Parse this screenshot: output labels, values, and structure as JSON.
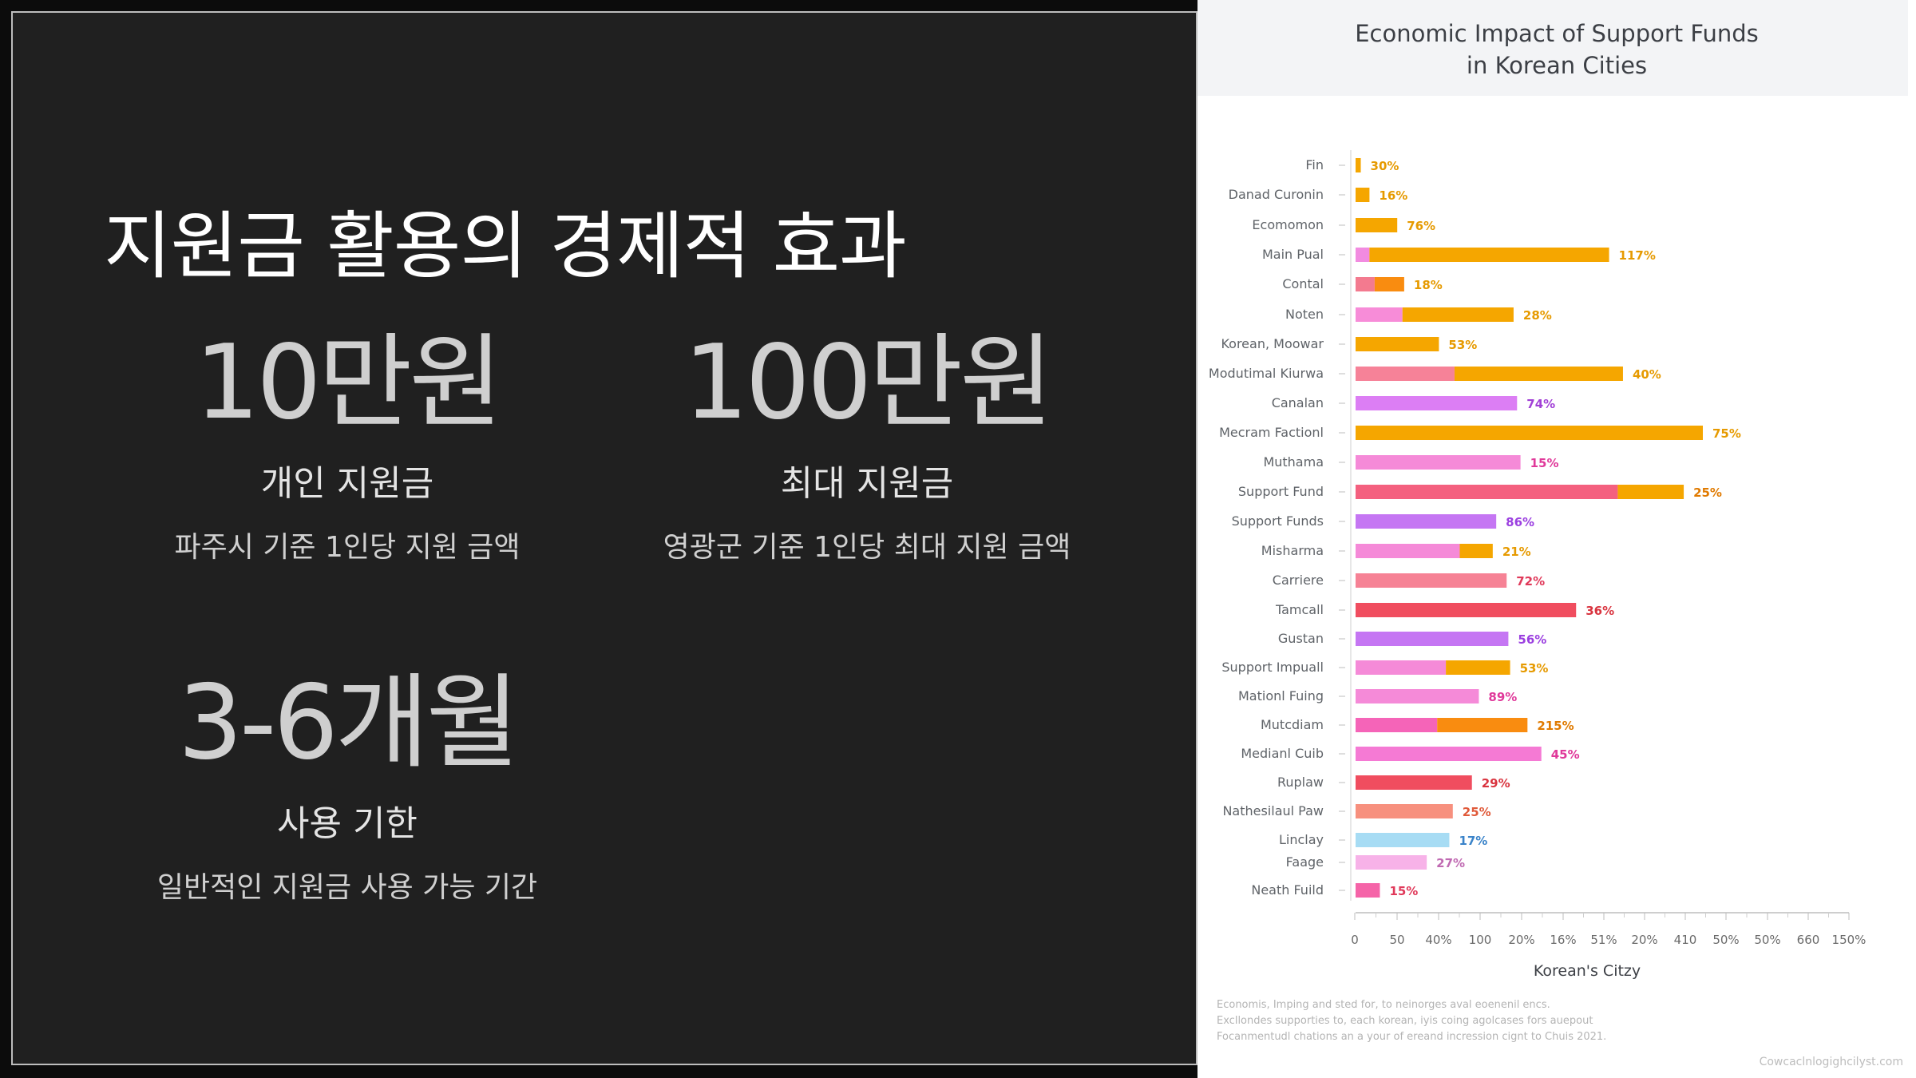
{
  "slide": {
    "title": "지원금 활용의 경제적 효과",
    "stats": [
      {
        "value": "10만원",
        "label": "개인 지원금",
        "desc": "파주시 기준 1인당 지원 금액"
      },
      {
        "value": "100만원",
        "label": "최대 지원금",
        "desc": "영광군 기준 1인당 최대 지원 금액"
      },
      {
        "value": "3-6개월",
        "label": "사용 기한",
        "desc": "일반적인 지원금 사용 가능 기간"
      }
    ]
  },
  "chart_data": {
    "type": "bar",
    "title_line1": "Economic Impact of Support Funds",
    "title_line2": "in Korean Cities",
    "xlabel": "Korean's Citzy",
    "xticks": [
      "0",
      "50",
      "40%",
      "100",
      "20%",
      "16%",
      "51%",
      "20%",
      "410",
      "50%",
      "50%",
      "660",
      "150%"
    ],
    "categories": [
      "Fin",
      "Danad Curonin",
      "Ecomomon",
      "Main Pual",
      "Contal",
      "Noten",
      "Korean, Moowar",
      "Modutimal Kiurwa",
      "Canalan",
      "Mecram Factionl",
      "Muthama",
      "Support Fund",
      "Support Funds",
      "Misharma",
      "Carriere",
      "Tamcall",
      "Gustan",
      "Support Impuall",
      "Mationl Fuing",
      "Mutcdiam",
      "Medianl Cuib",
      "Ruplaw",
      "Nathesilaul Paw",
      "Linclay",
      "Faage",
      "Neath Fuild"
    ],
    "labels": [
      "30%",
      "16%",
      "76%",
      "117%",
      "18%",
      "28%",
      "53%",
      "40%",
      "74%",
      "75%",
      "15%",
      "25%",
      "86%",
      "21%",
      "72%",
      "36%",
      "56%",
      "53%",
      "89%",
      "215%",
      "45%",
      "29%",
      "25%",
      "17%",
      "27%",
      "15%"
    ],
    "bars": [
      {
        "segments": [
          {
            "len": 3,
            "color": "#f5a600"
          }
        ],
        "label_color": "#e69a00"
      },
      {
        "segments": [
          {
            "len": 8,
            "color": "#f5a600"
          }
        ],
        "label_color": "#e69a00"
      },
      {
        "segments": [
          {
            "len": 24,
            "color": "#f5a600"
          }
        ],
        "label_color": "#e69a00"
      },
      {
        "segments": [
          {
            "len": 8,
            "color": "#f28be0"
          },
          {
            "len": 138,
            "color": "#f5a600"
          }
        ],
        "label_color": "#e69a00"
      },
      {
        "segments": [
          {
            "len": 11,
            "color": "#f37a8f"
          },
          {
            "len": 17,
            "color": "#f98c10"
          }
        ],
        "label_color": "#e69a00"
      },
      {
        "segments": [
          {
            "len": 27,
            "color": "#f78cd8"
          },
          {
            "len": 64,
            "color": "#f5a600"
          }
        ],
        "label_color": "#e69a00"
      },
      {
        "segments": [
          {
            "len": 48,
            "color": "#f5a600"
          }
        ],
        "label_color": "#e69a00"
      },
      {
        "segments": [
          {
            "len": 57,
            "color": "#f68298"
          },
          {
            "len": 97,
            "color": "#f5a600"
          }
        ],
        "label_color": "#e69a00"
      },
      {
        "segments": [
          {
            "len": 93,
            "color": "#dc7ef4"
          }
        ],
        "label_color": "#a13fd6"
      },
      {
        "segments": [
          {
            "len": 200,
            "color": "#f5a600"
          }
        ],
        "label_color": "#e69a00"
      },
      {
        "segments": [
          {
            "len": 95,
            "color": "#f58ad8"
          }
        ],
        "label_color": "#e0399a"
      },
      {
        "segments": [
          {
            "len": 151,
            "color": "#f4607f"
          },
          {
            "len": 38,
            "color": "#f5a600"
          }
        ],
        "label_color": "#e07a00"
      },
      {
        "segments": [
          {
            "len": 81,
            "color": "#c576f3"
          }
        ],
        "label_color": "#9b3fe0"
      },
      {
        "segments": [
          {
            "len": 60,
            "color": "#f58ad8"
          },
          {
            "len": 19,
            "color": "#f5a600"
          }
        ],
        "label_color": "#e69a00"
      },
      {
        "segments": [
          {
            "len": 87,
            "color": "#f68295"
          }
        ],
        "label_color": "#e0395a"
      },
      {
        "segments": [
          {
            "len": 127,
            "color": "#f04d5f"
          }
        ],
        "label_color": "#d9343f"
      },
      {
        "segments": [
          {
            "len": 88,
            "color": "#c576f3"
          }
        ],
        "label_color": "#9b3fe0"
      },
      {
        "segments": [
          {
            "len": 52,
            "color": "#f58ad8"
          },
          {
            "len": 37,
            "color": "#f5a600"
          }
        ],
        "label_color": "#e69a00"
      },
      {
        "segments": [
          {
            "len": 71,
            "color": "#f58ad8"
          }
        ],
        "label_color": "#e0399a"
      },
      {
        "segments": [
          {
            "len": 47,
            "color": "#f564b8"
          },
          {
            "len": 52,
            "color": "#f98c10"
          }
        ],
        "label_color": "#e07a00"
      },
      {
        "segments": [
          {
            "len": 107,
            "color": "#f57ad4"
          }
        ],
        "label_color": "#e0399a"
      },
      {
        "segments": [
          {
            "len": 67,
            "color": "#f04d5f"
          }
        ],
        "label_color": "#d9343f"
      },
      {
        "segments": [
          {
            "len": 56,
            "color": "#f7907e"
          }
        ],
        "label_color": "#e05a3a"
      },
      {
        "segments": [
          {
            "len": 54,
            "color": "#a7dcf4"
          }
        ],
        "label_color": "#3a83c9"
      },
      {
        "segments": [
          {
            "len": 41,
            "color": "#f7b2e8"
          }
        ],
        "label_color": "#c06ab2"
      },
      {
        "segments": [
          {
            "len": 14,
            "color": "#f564a8"
          }
        ],
        "label_color": "#e0395a"
      }
    ],
    "grid": false,
    "legend": "none"
  },
  "footnote": [
    "Economis, Imping and sted for, to neinorges aval eoenenil encs.",
    "Excllondes supporties to, each korean, iyis coing agolcases fors auepout",
    "Focanmentudl chations an a your of ereand incression cignt to Chuis 2021."
  ],
  "source": "Cowcaclnlogighcilyst.com"
}
